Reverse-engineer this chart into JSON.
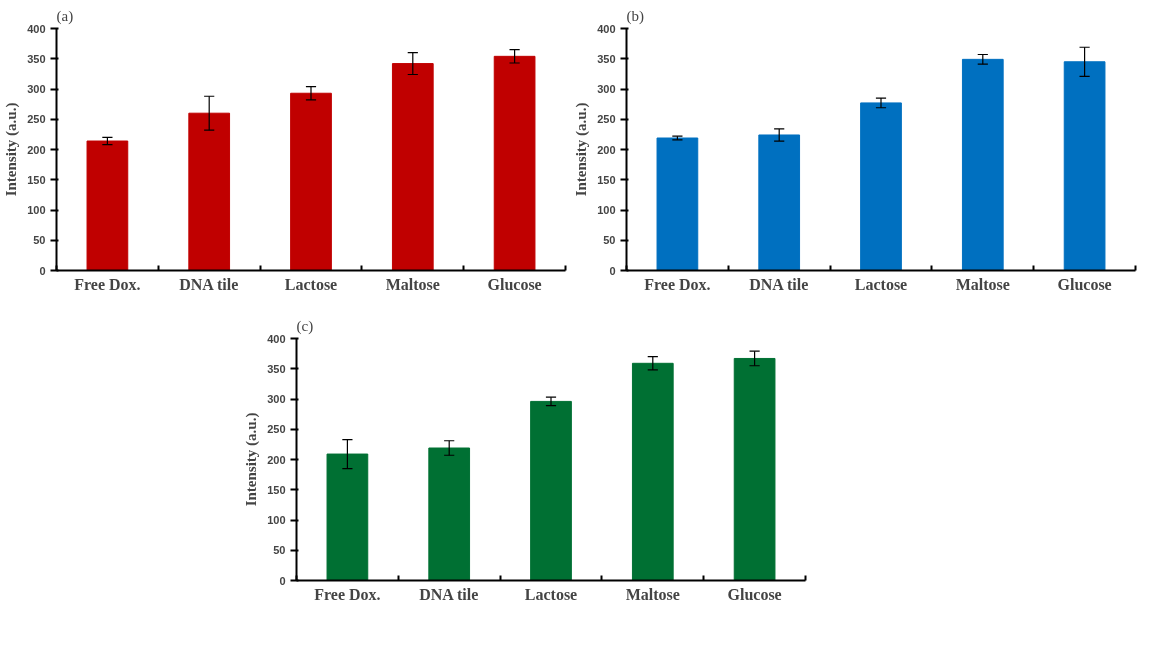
{
  "chart_data": [
    {
      "type": "bar",
      "title": "(a)",
      "ylabel": "Intensity (a.u.)",
      "categories": [
        "Free Dox.",
        "DNA tile",
        "Lactose",
        "Maltose",
        "Glucose"
      ],
      "values": [
        214,
        260,
        293,
        342,
        354
      ],
      "errors": [
        6,
        28,
        11,
        18,
        11
      ],
      "color": "#c00000",
      "ylim": [
        0,
        400
      ],
      "yticks": [
        0,
        50,
        100,
        150,
        200,
        250,
        300,
        350,
        400
      ]
    },
    {
      "type": "bar",
      "title": "(b)",
      "ylabel": "Intensity (a.u.)",
      "categories": [
        "Free Dox.",
        "DNA tile",
        "Lactose",
        "Maltose",
        "Glucose"
      ],
      "values": [
        219,
        224,
        277,
        349,
        345
      ],
      "errors": [
        3,
        10,
        8,
        8,
        24
      ],
      "color": "#0070c0",
      "ylim": [
        0,
        400
      ],
      "yticks": [
        0,
        50,
        100,
        150,
        200,
        250,
        300,
        350,
        400
      ]
    },
    {
      "type": "bar",
      "title": "(c)",
      "ylabel": "Intensity (a.u.)",
      "categories": [
        "Free Dox.",
        "DNA tile",
        "Lactose",
        "Maltose",
        "Glucose"
      ],
      "values": [
        209,
        219,
        296,
        359,
        367
      ],
      "errors": [
        24,
        12,
        7,
        11,
        12
      ],
      "color": "#007033",
      "ylim": [
        0,
        400
      ],
      "yticks": [
        0,
        50,
        100,
        150,
        200,
        250,
        300,
        350,
        400
      ]
    }
  ]
}
